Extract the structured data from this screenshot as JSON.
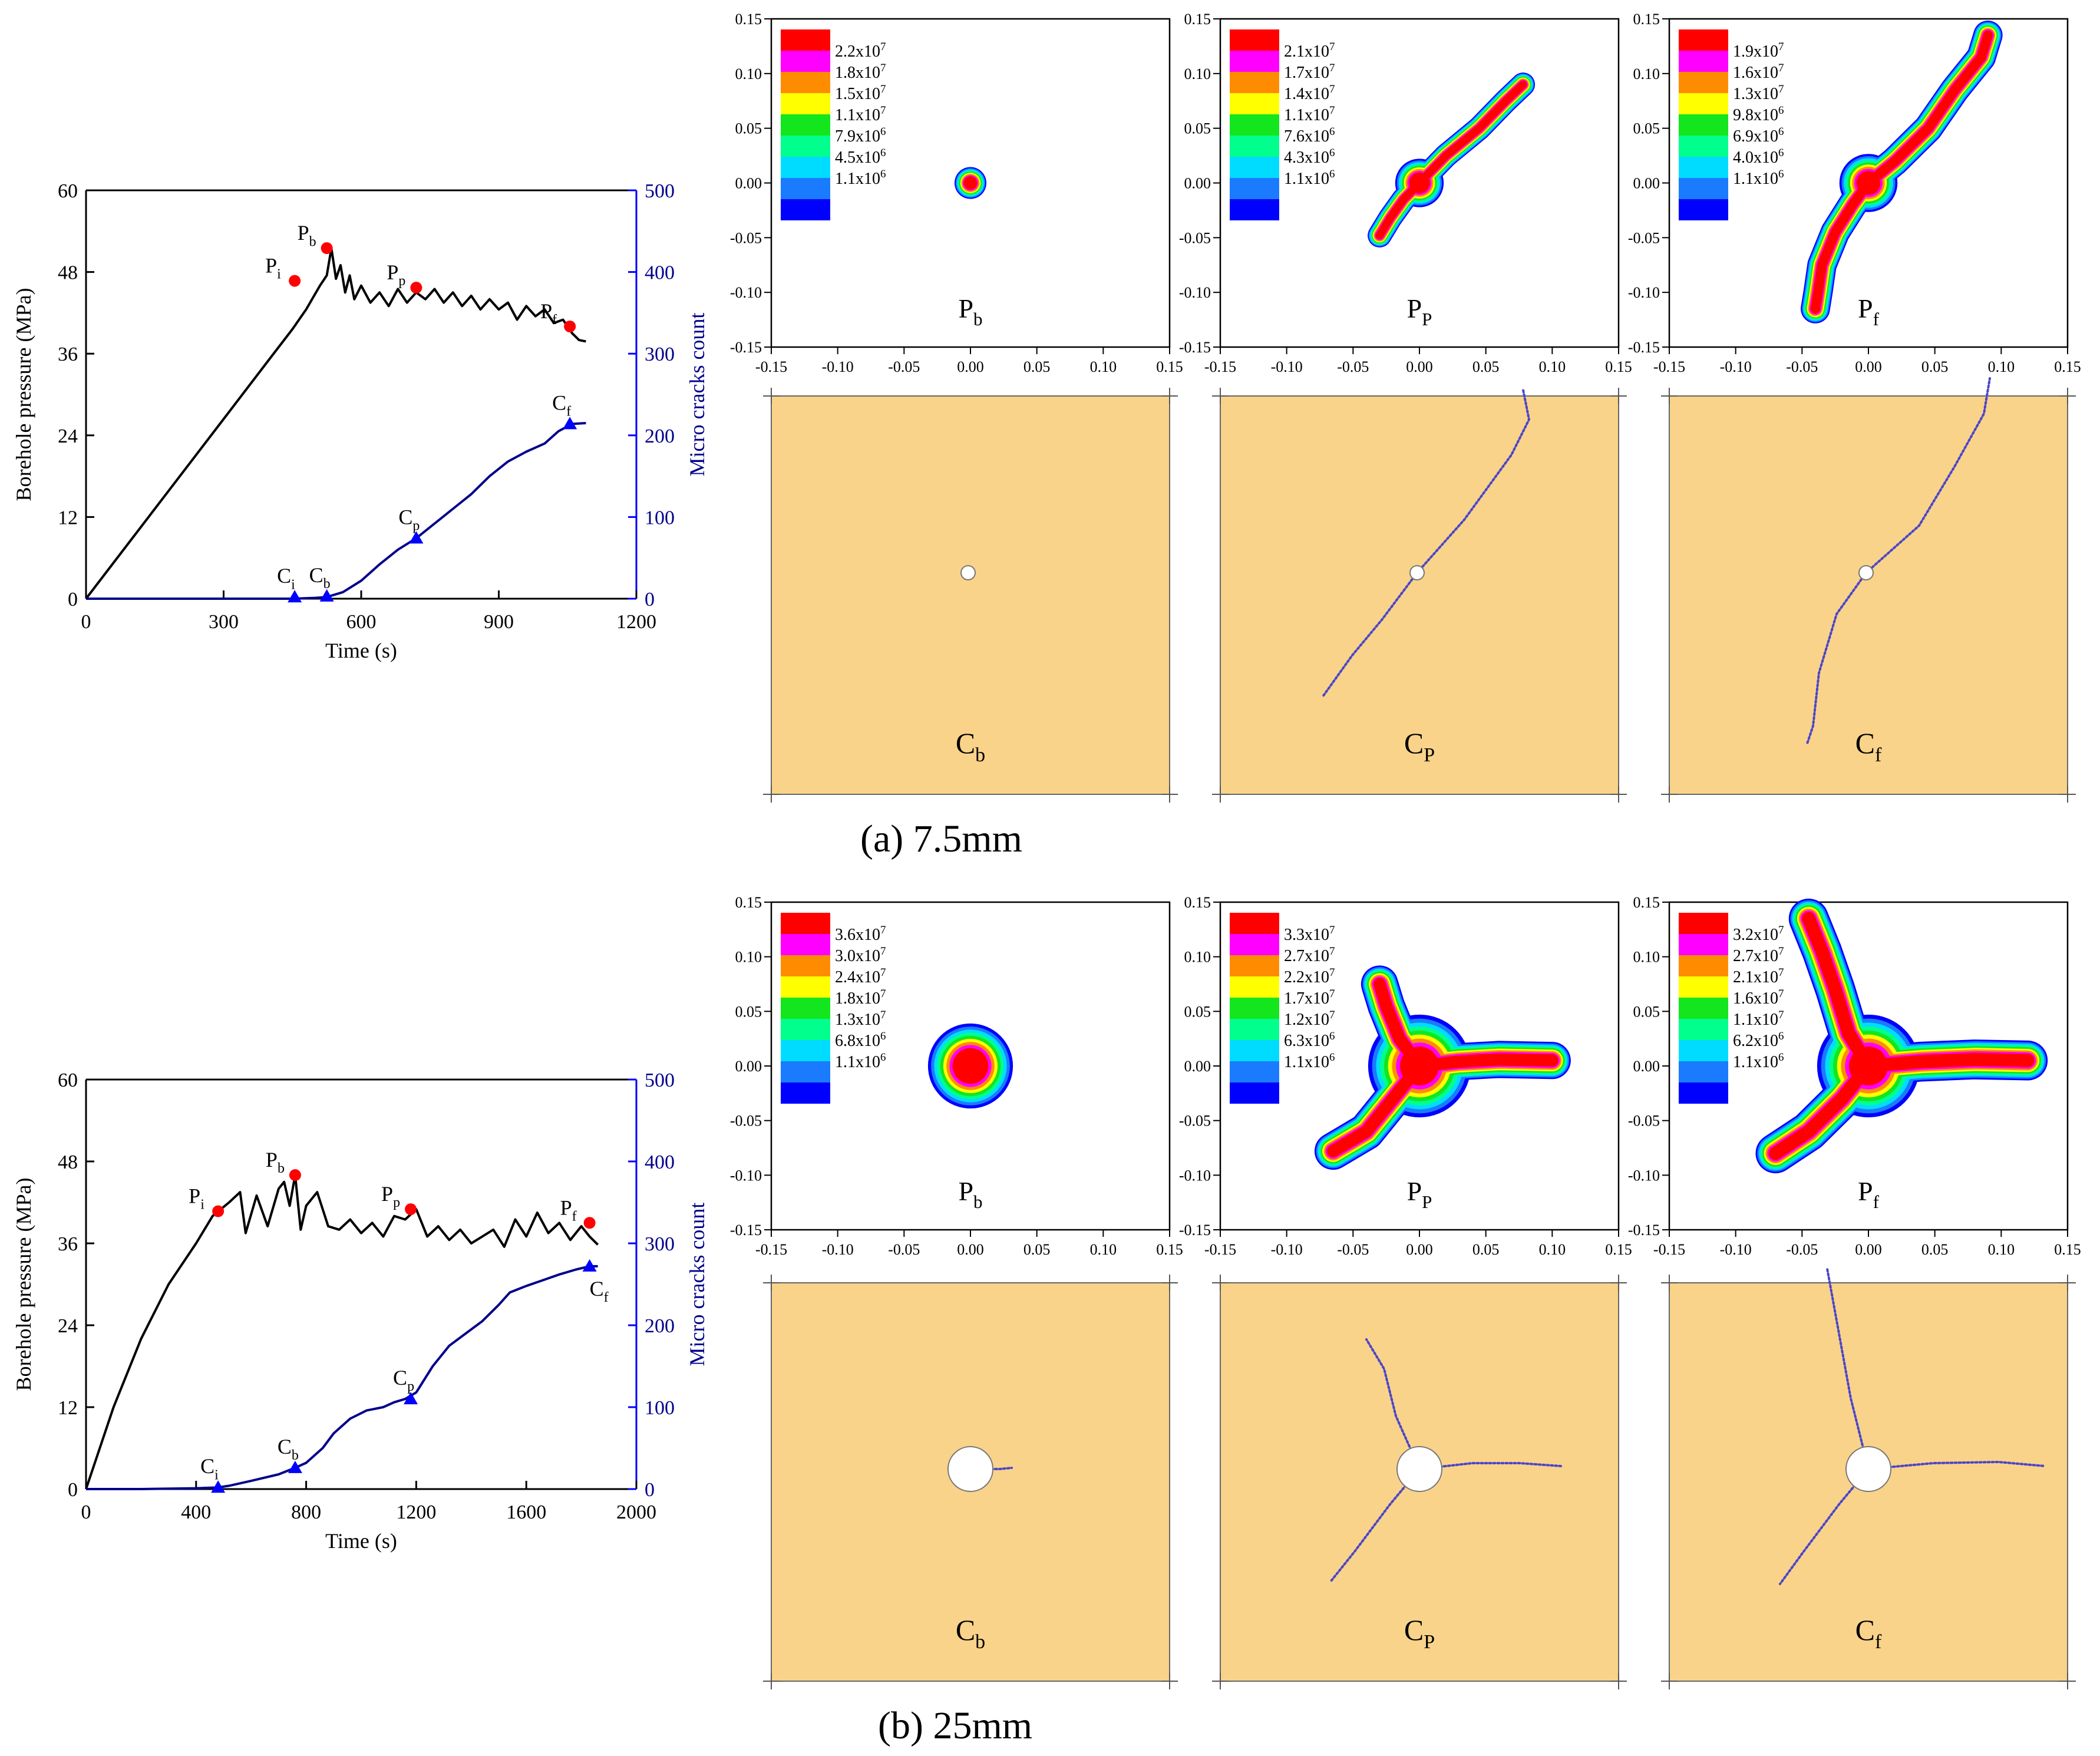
{
  "figure": {
    "captions": {
      "a": "(a) 7.5mm",
      "b": "(b) 25mm"
    }
  },
  "colors": {
    "curve": "#000000",
    "cracks": "#00008b",
    "marker_red": "#ff0000",
    "marker_blue": "#0000ff",
    "rock": "#f9d38a",
    "crack_line": "#4b46c8",
    "scale": [
      "#0000ff",
      "#1a7bff",
      "#00dcff",
      "#00ff8c",
      "#14e61e",
      "#ffff00",
      "#ff8c00",
      "#ff00ff",
      "#ff0000"
    ]
  },
  "chart_data": [
    {
      "id": "a",
      "type": "line",
      "xlabel": "Time (s)",
      "ylabel": "Borehole pressure (MPa)",
      "y2label": "Micro cracks count",
      "xlim": [
        0,
        1200
      ],
      "xticks": [
        0,
        300,
        600,
        900,
        1200
      ],
      "ylim": [
        0,
        60
      ],
      "yticks": [
        0,
        12,
        24,
        36,
        48,
        60
      ],
      "y2lim": [
        0,
        500
      ],
      "y2ticks": [
        0,
        100,
        200,
        300,
        400,
        500
      ],
      "series": [
        {
          "name": "Borehole pressure",
          "axis": "left",
          "x": [
            0,
            100,
            200,
            300,
            400,
            450,
            480,
            510,
            525,
            535,
            545,
            555,
            565,
            575,
            585,
            600,
            620,
            640,
            660,
            680,
            700,
            720,
            740,
            760,
            780,
            800,
            820,
            840,
            860,
            880,
            900,
            920,
            940,
            960,
            980,
            1000,
            1020,
            1040,
            1060,
            1075,
            1090
          ],
          "values": [
            0,
            8.8,
            17.6,
            26.4,
            35.2,
            39.6,
            42.5,
            46.0,
            47.5,
            51.5,
            47.0,
            49.0,
            45.0,
            47.5,
            44.0,
            46.0,
            43.5,
            45.0,
            43.0,
            45.5,
            43.5,
            45.0,
            44.0,
            45.5,
            43.5,
            45.0,
            43.0,
            44.5,
            42.5,
            44.0,
            42.5,
            43.5,
            41.0,
            43.0,
            41.5,
            42.5,
            40.5,
            41.0,
            39.0,
            38.0,
            37.8
          ]
        },
        {
          "name": "Micro cracks count",
          "axis": "right",
          "x": [
            0,
            200,
            400,
            450,
            500,
            525,
            560,
            600,
            640,
            680,
            720,
            760,
            800,
            840,
            880,
            920,
            960,
            1000,
            1030,
            1060,
            1090
          ],
          "values": [
            0,
            0,
            0,
            0,
            1,
            2,
            8,
            22,
            42,
            60,
            74,
            92,
            110,
            128,
            150,
            168,
            180,
            190,
            205,
            214,
            215
          ]
        }
      ],
      "markers": [
        {
          "label": "P",
          "sub": "i",
          "series": "pressure",
          "x": 455,
          "y": 46.7
        },
        {
          "label": "P",
          "sub": "b",
          "series": "pressure",
          "x": 525,
          "y": 51.5
        },
        {
          "label": "P",
          "sub": "p",
          "series": "pressure",
          "x": 720,
          "y": 45.7
        },
        {
          "label": "P",
          "sub": "f",
          "series": "pressure",
          "x": 1055,
          "y": 40.0
        },
        {
          "label": "C",
          "sub": "i",
          "series": "cracks",
          "x": 455,
          "y": 2
        },
        {
          "label": "C",
          "sub": "b",
          "series": "cracks",
          "x": 525,
          "y": 3
        },
        {
          "label": "C",
          "sub": "p",
          "series": "cracks",
          "x": 720,
          "y": 74
        },
        {
          "label": "C",
          "sub": "f",
          "series": "cracks",
          "x": 1055,
          "y": 214
        }
      ]
    },
    {
      "id": "b",
      "type": "line",
      "xlabel": "Time (s)",
      "ylabel": "Borehole pressure (MPa)",
      "y2label": "Micro cracks count",
      "xlim": [
        0,
        2000
      ],
      "xticks": [
        0,
        400,
        800,
        1200,
        1600,
        2000
      ],
      "ylim": [
        0,
        60
      ],
      "yticks": [
        0,
        12,
        24,
        36,
        48,
        60
      ],
      "y2lim": [
        0,
        500
      ],
      "y2ticks": [
        0,
        100,
        200,
        300,
        400,
        500
      ],
      "series": [
        {
          "name": "Borehole pressure",
          "axis": "left",
          "x": [
            0,
            100,
            200,
            300,
            400,
            460,
            520,
            560,
            580,
            620,
            660,
            700,
            720,
            740,
            760,
            780,
            800,
            840,
            880,
            920,
            960,
            1000,
            1040,
            1080,
            1120,
            1160,
            1200,
            1240,
            1280,
            1320,
            1360,
            1400,
            1440,
            1480,
            1520,
            1560,
            1600,
            1640,
            1680,
            1720,
            1760,
            1800,
            1830,
            1860
          ],
          "values": [
            0,
            12,
            22,
            30,
            36,
            40,
            42,
            43.5,
            37.5,
            43,
            38.5,
            44,
            45,
            41.5,
            46,
            38,
            41.5,
            43.5,
            38.5,
            38.0,
            39.5,
            37.5,
            39.0,
            37.0,
            40.0,
            39.5,
            41.0,
            37.0,
            38.5,
            36.5,
            38.0,
            36.0,
            37.0,
            38.0,
            35.5,
            39.5,
            37.0,
            40.5,
            37.5,
            39.0,
            36.5,
            38.5,
            37.0,
            35.8
          ]
        },
        {
          "name": "Micro cracks count",
          "axis": "right",
          "x": [
            0,
            200,
            400,
            480,
            520,
            600,
            700,
            760,
            800,
            860,
            900,
            960,
            1020,
            1080,
            1120,
            1160,
            1200,
            1260,
            1320,
            1380,
            1440,
            1500,
            1540,
            1600,
            1660,
            1720,
            1780,
            1830,
            1860
          ],
          "values": [
            0,
            0,
            1,
            2,
            4,
            10,
            18,
            26,
            32,
            50,
            68,
            86,
            96,
            100,
            106,
            110,
            118,
            150,
            175,
            190,
            205,
            225,
            240,
            248,
            255,
            262,
            268,
            272,
            272
          ]
        }
      ],
      "markers": [
        {
          "label": "P",
          "sub": "i",
          "series": "pressure",
          "x": 480,
          "y": 40.7
        },
        {
          "label": "P",
          "sub": "b",
          "series": "pressure",
          "x": 760,
          "y": 46.0
        },
        {
          "label": "P",
          "sub": "p",
          "series": "pressure",
          "x": 1180,
          "y": 41.0
        },
        {
          "label": "P",
          "sub": "f",
          "series": "pressure",
          "x": 1830,
          "y": 39.0
        },
        {
          "label": "C",
          "sub": "i",
          "series": "cracks",
          "x": 480,
          "y": 2
        },
        {
          "label": "C",
          "sub": "b",
          "series": "cracks",
          "x": 760,
          "y": 26
        },
        {
          "label": "C",
          "sub": "p",
          "series": "cracks",
          "x": 1180,
          "y": 110
        },
        {
          "label": "C",
          "sub": "f",
          "series": "cracks",
          "x": 1830,
          "y": 272
        }
      ]
    },
    {
      "id": "a-contours",
      "type": "heatmap",
      "xlim": [
        -0.15,
        0.15
      ],
      "ylim": [
        -0.15,
        0.15
      ],
      "xticks": [
        "-0.15",
        "-0.10",
        "-0.05",
        "0.00",
        "0.05",
        "0.10",
        "0.15"
      ],
      "yticks": [
        "-0.15",
        "-0.10",
        "-0.05",
        "0.00",
        "0.05",
        "0.10",
        "0.15"
      ],
      "panels": [
        {
          "label": "P",
          "sub": "b",
          "legend": [
            [
              "2.2x10",
              "7"
            ],
            [
              "1.8x10",
              "7"
            ],
            [
              "1.5x10",
              "7"
            ],
            [
              "1.1x10",
              "7"
            ],
            [
              "7.9x10",
              "6"
            ],
            [
              "4.5x10",
              "6"
            ],
            [
              "1.1x10",
              "6"
            ]
          ],
          "shape": {
            "kind": "blob",
            "r": 0.012
          }
        },
        {
          "label": "P",
          "sub": "P",
          "legend": [
            [
              "2.1x10",
              "7"
            ],
            [
              "1.7x10",
              "7"
            ],
            [
              "1.4x10",
              "7"
            ],
            [
              "1.1x10",
              "7"
            ],
            [
              "7.6x10",
              "6"
            ],
            [
              "4.3x10",
              "6"
            ],
            [
              "1.1x10",
              "6"
            ]
          ],
          "shape": {
            "kind": "arms",
            "core": 0.013,
            "width": 0.009,
            "arms": [
              [
                [
                  0,
                  0
                ],
                [
                  0.02,
                  0.025
                ],
                [
                  0.045,
                  0.05
                ],
                [
                  0.065,
                  0.075
                ],
                [
                  0.078,
                  0.09
                ]
              ],
              [
                [
                  0,
                  0
                ],
                [
                  -0.012,
                  -0.015
                ],
                [
                  -0.022,
                  -0.032
                ],
                [
                  -0.03,
                  -0.048
                ]
              ]
            ]
          }
        },
        {
          "label": "P",
          "sub": "f",
          "legend": [
            [
              "1.9x10",
              "7"
            ],
            [
              "1.6x10",
              "7"
            ],
            [
              "1.3x10",
              "7"
            ],
            [
              "9.8x10",
              "6"
            ],
            [
              "6.9x10",
              "6"
            ],
            [
              "4.0x10",
              "6"
            ],
            [
              "1.1x10",
              "6"
            ]
          ],
          "shape": {
            "kind": "arms",
            "core": 0.016,
            "width": 0.011,
            "arms": [
              [
                [
                  0,
                  0
                ],
                [
                  0.02,
                  0.02
                ],
                [
                  0.045,
                  0.05
                ],
                [
                  0.065,
                  0.085
                ],
                [
                  0.085,
                  0.115
                ],
                [
                  0.09,
                  0.135
                ]
              ],
              [
                [
                  0,
                  0
                ],
                [
                  -0.012,
                  -0.02
                ],
                [
                  -0.025,
                  -0.045
                ],
                [
                  -0.035,
                  -0.075
                ],
                [
                  -0.038,
                  -0.1
                ],
                [
                  -0.04,
                  -0.115
                ]
              ]
            ]
          }
        }
      ]
    },
    {
      "id": "b-contours",
      "type": "heatmap",
      "xlim": [
        -0.15,
        0.15
      ],
      "ylim": [
        -0.15,
        0.15
      ],
      "xticks": [
        "-0.15",
        "-0.10",
        "-0.05",
        "0.00",
        "0.05",
        "0.10",
        "0.15"
      ],
      "yticks": [
        "-0.15",
        "-0.10",
        "-0.05",
        "0.00",
        "0.05",
        "0.10",
        "0.15"
      ],
      "panels": [
        {
          "label": "P",
          "sub": "b",
          "legend": [
            [
              "3.6x10",
              "7"
            ],
            [
              "3.0x10",
              "7"
            ],
            [
              "2.4x10",
              "7"
            ],
            [
              "1.8x10",
              "7"
            ],
            [
              "1.3x10",
              "7"
            ],
            [
              "6.8x10",
              "6"
            ],
            [
              "1.1x10",
              "6"
            ]
          ],
          "shape": {
            "kind": "blob",
            "r": 0.032
          }
        },
        {
          "label": "P",
          "sub": "P",
          "legend": [
            [
              "3.3x10",
              "7"
            ],
            [
              "2.7x10",
              "7"
            ],
            [
              "2.2x10",
              "7"
            ],
            [
              "1.7x10",
              "7"
            ],
            [
              "1.2x10",
              "7"
            ],
            [
              "6.3x10",
              "6"
            ],
            [
              "1.1x10",
              "6"
            ]
          ],
          "shape": {
            "kind": "arms",
            "core": 0.03,
            "width": 0.014,
            "arms": [
              [
                [
                  0,
                  0
                ],
                [
                  0.03,
                  0.004
                ],
                [
                  0.06,
                  0.006
                ],
                [
                  0.1,
                  0.005
                ]
              ],
              [
                [
                  0,
                  0
                ],
                [
                  -0.015,
                  0.025
                ],
                [
                  -0.025,
                  0.055
                ],
                [
                  -0.03,
                  0.075
                ]
              ],
              [
                [
                  0,
                  0
                ],
                [
                  -0.02,
                  -0.03
                ],
                [
                  -0.04,
                  -0.06
                ],
                [
                  -0.065,
                  -0.078
                ]
              ]
            ]
          }
        },
        {
          "label": "P",
          "sub": "f",
          "legend": [
            [
              "3.2x10",
              "7"
            ],
            [
              "2.7x10",
              "7"
            ],
            [
              "2.1x10",
              "7"
            ],
            [
              "1.6x10",
              "7"
            ],
            [
              "1.1x10",
              "7"
            ],
            [
              "6.2x10",
              "6"
            ],
            [
              "1.1x10",
              "6"
            ]
          ],
          "shape": {
            "kind": "arms",
            "core": 0.03,
            "width": 0.015,
            "arms": [
              [
                [
                  0,
                  0
                ],
                [
                  0.04,
                  0.004
                ],
                [
                  0.08,
                  0.006
                ],
                [
                  0.12,
                  0.005
                ]
              ],
              [
                [
                  0,
                  0
                ],
                [
                  -0.015,
                  0.03
                ],
                [
                  -0.025,
                  0.07
                ],
                [
                  -0.035,
                  0.105
                ],
                [
                  -0.045,
                  0.135
                ]
              ],
              [
                [
                  0,
                  0
                ],
                [
                  -0.02,
                  -0.03
                ],
                [
                  -0.045,
                  -0.06
                ],
                [
                  -0.07,
                  -0.08
                ]
              ]
            ]
          }
        }
      ]
    },
    {
      "id": "crack-maps",
      "type": "other",
      "labels": [
        {
          "label": "C",
          "sub": "b"
        },
        {
          "label": "C",
          "sub": "P"
        },
        {
          "label": "C",
          "sub": "f"
        },
        {
          "label": "C",
          "sub": "b"
        },
        {
          "label": "C",
          "sub": "P"
        },
        {
          "label": "C",
          "sub": "f"
        }
      ]
    }
  ]
}
